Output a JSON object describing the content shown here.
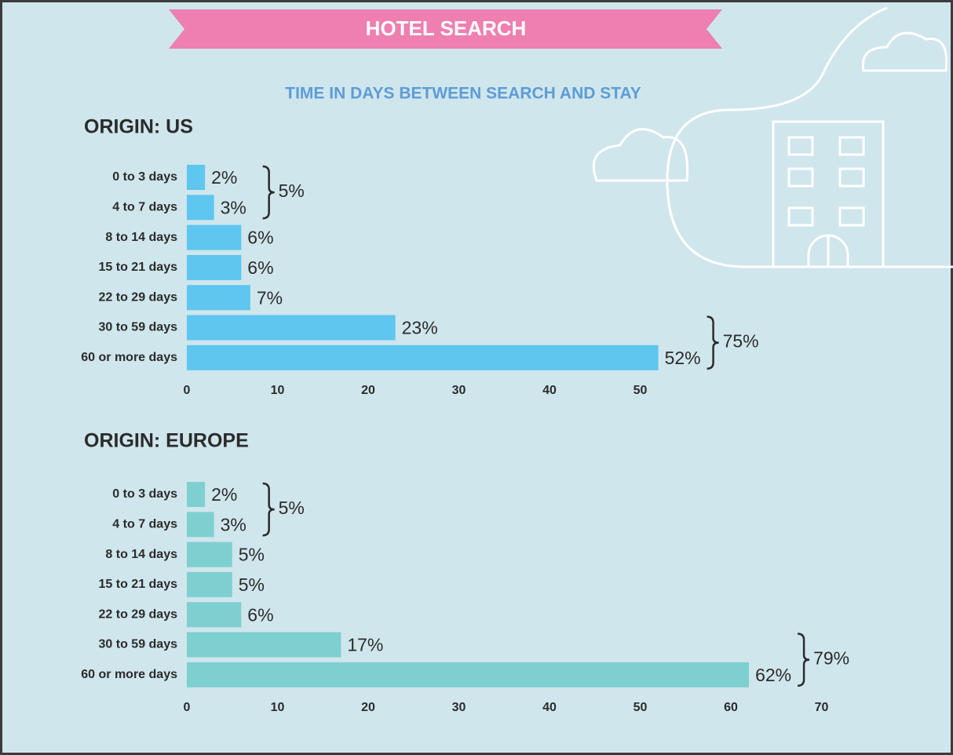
{
  "header": {
    "title": "HOTEL SEARCH",
    "subtitle": "TIME IN DAYS BETWEEN SEARCH AND STAY"
  },
  "chart_data": [
    {
      "type": "bar",
      "orientation": "horizontal",
      "title": "ORIGIN: US",
      "categories": [
        "0 to 3 days",
        "4 to 7 days",
        "8 to 14 days",
        "15 to 21 days",
        "22 to 29 days",
        "30 to 59 days",
        "60 or more days"
      ],
      "values": [
        2,
        3,
        6,
        6,
        7,
        23,
        52
      ],
      "value_labels": [
        "2%",
        "3%",
        "6%",
        "6%",
        "7%",
        "23%",
        "52%"
      ],
      "color": "#5ec6ef",
      "xlim": [
        0,
        55
      ],
      "xticks": [
        0,
        10,
        20,
        30,
        40,
        50
      ],
      "annotations": [
        {
          "value": 5,
          "label": "5%",
          "categories": [
            "0 to 3 days",
            "4 to 7 days"
          ]
        },
        {
          "value": 75,
          "label": "75%",
          "categories": [
            "30 to 59 days",
            "60 or more days"
          ]
        }
      ]
    },
    {
      "type": "bar",
      "orientation": "horizontal",
      "title": "ORIGIN: EUROPE",
      "categories": [
        "0 to 3 days",
        "4 to 7 days",
        "8 to 14 days",
        "15 to 21 days",
        "22 to 29 days",
        "30 to 59 days",
        "60 or more days"
      ],
      "values": [
        2,
        3,
        5,
        5,
        6,
        17,
        62
      ],
      "value_labels": [
        "2%",
        "3%",
        "5%",
        "5%",
        "6%",
        "17%",
        "62%"
      ],
      "color": "#7ecfd0",
      "xlim": [
        0,
        70
      ],
      "xticks": [
        0,
        10,
        20,
        30,
        40,
        50,
        60,
        70
      ],
      "annotations": [
        {
          "value": 5,
          "label": "5%",
          "categories": [
            "0 to 3 days",
            "4 to 7 days"
          ]
        },
        {
          "value": 79,
          "label": "79%",
          "categories": [
            "30 to 59 days",
            "60 or more days"
          ]
        }
      ]
    }
  ]
}
